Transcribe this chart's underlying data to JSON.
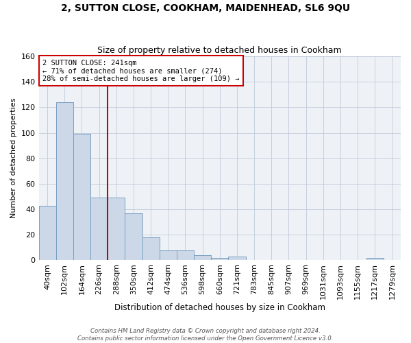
{
  "title": "2, SUTTON CLOSE, COOKHAM, MAIDENHEAD, SL6 9QU",
  "subtitle": "Size of property relative to detached houses in Cookham",
  "xlabel": "Distribution of detached houses by size in Cookham",
  "ylabel": "Number of detached properties",
  "footer_line1": "Contains HM Land Registry data © Crown copyright and database right 2024.",
  "footer_line2": "Contains public sector information licensed under the Open Government Licence v3.0.",
  "bar_labels": [
    "40sqm",
    "102sqm",
    "164sqm",
    "226sqm",
    "288sqm",
    "350sqm",
    "412sqm",
    "474sqm",
    "536sqm",
    "598sqm",
    "660sqm",
    "721sqm",
    "783sqm",
    "845sqm",
    "907sqm",
    "969sqm",
    "1031sqm",
    "1093sqm",
    "1155sqm",
    "1217sqm",
    "1279sqm"
  ],
  "bar_values": [
    43,
    124,
    99,
    49,
    49,
    37,
    18,
    8,
    8,
    4,
    2,
    3,
    0,
    0,
    0,
    0,
    0,
    0,
    0,
    2,
    0
  ],
  "bar_color": "#ccd8e8",
  "bar_edgecolor": "#7a9fc0",
  "ylim": [
    0,
    160
  ],
  "yticks": [
    0,
    20,
    40,
    60,
    80,
    100,
    120,
    140,
    160
  ],
  "vline_x": 3.5,
  "vline_color": "#cc0000",
  "annotation_text": "2 SUTTON CLOSE: 241sqm\n← 71% of detached houses are smaller (274)\n28% of semi-detached houses are larger (109) →",
  "annotation_box_color": "#cc0000",
  "background_color": "#eef2f7",
  "grid_color": "#c0cad8",
  "fig_width": 6.0,
  "fig_height": 5.0,
  "dpi": 100
}
